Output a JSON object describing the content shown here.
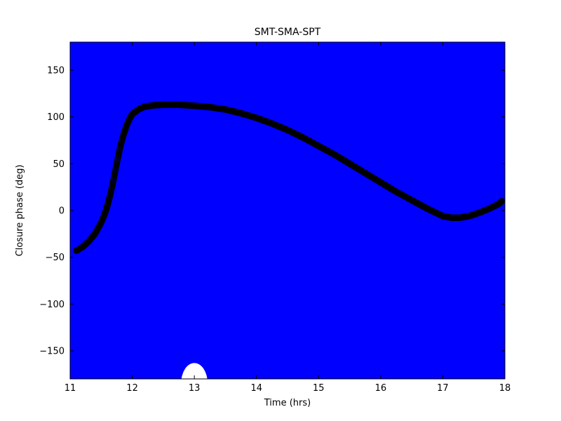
{
  "figure": {
    "background_color": "#ffffff"
  },
  "chart_data": {
    "type": "line",
    "title": "SMT-SMA-SPT",
    "xlabel": "Time (hrs)",
    "ylabel": "Closure phase (deg)",
    "xlim": [
      11,
      18
    ],
    "ylim": [
      -180,
      180
    ],
    "xticks": [
      11,
      12,
      13,
      14,
      15,
      16,
      17,
      18
    ],
    "xtick_labels": [
      "11",
      "12",
      "13",
      "14",
      "15",
      "16",
      "17",
      "18"
    ],
    "yticks": [
      -150,
      -100,
      -50,
      0,
      50,
      100,
      150
    ],
    "ytick_labels": [
      "−150",
      "−100",
      "−50",
      "0",
      "50",
      "100",
      "150"
    ],
    "grid": false,
    "legend": "none",
    "background_fill_color": "#0000ff",
    "line_color": "#000000",
    "marker": "o",
    "frame_color": "#000000",
    "white_gap": {
      "x_center": 13.0,
      "x_half_width": 0.19,
      "y_top": -163
    },
    "series": [
      {
        "name": "closure_phase",
        "x": [
          11.1,
          11.15,
          11.2,
          11.25,
          11.3,
          11.35,
          11.4,
          11.45,
          11.5,
          11.55,
          11.6,
          11.65,
          11.7,
          11.75,
          11.8,
          11.85,
          11.9,
          11.95,
          12.0,
          12.1,
          12.2,
          12.35,
          12.5,
          12.75,
          13.0,
          13.25,
          13.5,
          13.75,
          14.0,
          14.25,
          14.5,
          14.75,
          15.0,
          15.25,
          15.5,
          15.75,
          16.0,
          16.25,
          16.5,
          16.75,
          17.0,
          17.15,
          17.3,
          17.45,
          17.6,
          17.75,
          17.9,
          17.95
        ],
        "y": [
          -43,
          -41,
          -39,
          -36,
          -33,
          -29,
          -25,
          -19,
          -13,
          -5,
          5,
          18,
          33,
          50,
          66,
          79,
          89,
          97,
          103,
          108,
          111,
          112.5,
          113,
          113,
          112,
          110.5,
          108,
          104,
          99,
          93,
          86,
          78,
          69,
          60,
          50,
          40,
          30,
          20,
          11,
          2,
          -6,
          -7.8,
          -7.5,
          -5.5,
          -2,
          2,
          7,
          10
        ]
      }
    ]
  }
}
